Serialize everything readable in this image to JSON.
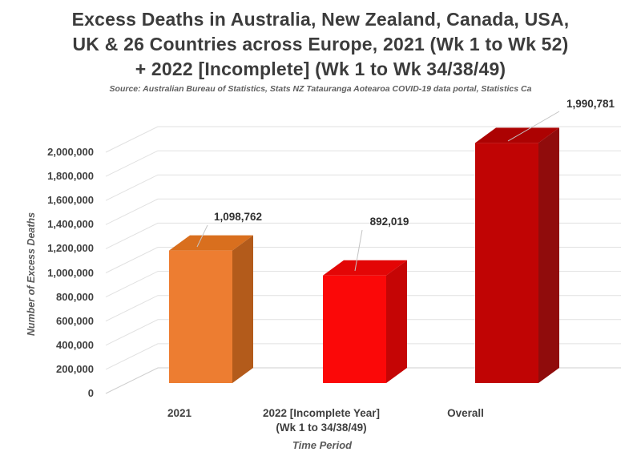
{
  "title": {
    "lines": [
      "Excess Deaths in Australia, New Zealand, Canada, USA,",
      "UK & 26 Countries across Europe, 2021 (Wk 1 to Wk 52)",
      "+ 2022 [Incomplete] (Wk 1 to Wk 34/38/49)"
    ]
  },
  "source": "Source: Australian Bureau of Statistics, Stats NZ Tatauranga Aotearoa COVID-19 data portal, Statistics Ca",
  "chart_data": {
    "type": "bar",
    "style": "3d-column",
    "title": "Excess Deaths in Australia, New Zealand, Canada, USA, UK & 26 Countries across Europe, 2021 (Wk 1 to Wk 52) + 2022 [Incomplete] (Wk 1 to Wk 34/38/49)",
    "xlabel": "Time Period",
    "ylabel": "Number of Excess Deaths",
    "categories": [
      "2021",
      "2022 [Incomplete Year] (Wk 1 to 34/38/49)",
      "Overall"
    ],
    "categories_display": [
      [
        "2021"
      ],
      [
        "2022 [Incomplete Year]",
        "(Wk 1 to 34/38/49)"
      ],
      [
        "Overall"
      ]
    ],
    "values": [
      1098762,
      892019,
      1990781
    ],
    "data_labels": [
      "1,098,762",
      "892,019",
      "1,990,781"
    ],
    "ylim": [
      0,
      2000000
    ],
    "ytick_step": 200000,
    "yticks": [
      "0",
      "200,000",
      "400,000",
      "600,000",
      "800,000",
      "1,000,000",
      "1,200,000",
      "1,400,000",
      "1,600,000",
      "1,800,000",
      "2,000,000"
    ],
    "grid": true,
    "legend": false,
    "bar_colors": [
      {
        "front": "#ED7D31",
        "top": "#D96F1E",
        "side": "#B35B1B"
      },
      {
        "front": "#FB0808",
        "top": "#E30606",
        "side": "#C50505"
      },
      {
        "front": "#C00404",
        "top": "#AC0202",
        "side": "#900C0C"
      }
    ]
  }
}
